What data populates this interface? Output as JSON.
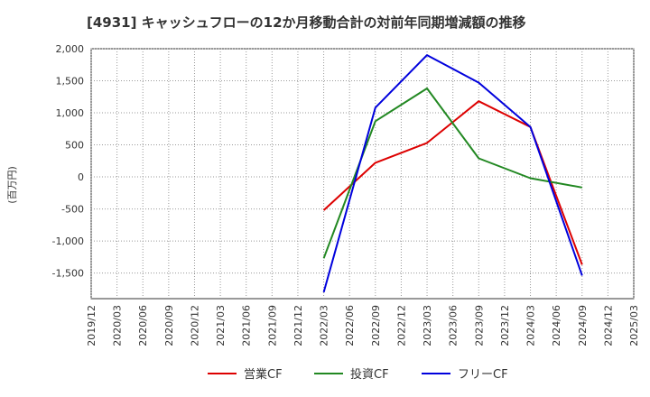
{
  "chart_data": {
    "type": "line",
    "title": "[4931]  キャッシュフローの12か月移動合計の対前年同期増減額の推移",
    "ylabel": "(百万円)",
    "xlabel": "",
    "ylim": [
      -1900,
      2000
    ],
    "yticks": [
      2000,
      1500,
      1000,
      500,
      0,
      -500,
      -1000,
      -1500
    ],
    "ytick_labels": [
      "2,000",
      "1,500",
      "1,000",
      "500",
      "0",
      "-500",
      "-1,000",
      "-1,500"
    ],
    "categories": [
      "2019/12",
      "2020/03",
      "2020/06",
      "2020/09",
      "2020/12",
      "2021/03",
      "2021/06",
      "2021/09",
      "2021/12",
      "2022/03",
      "2022/06",
      "2022/09",
      "2022/12",
      "2023/03",
      "2023/06",
      "2023/09",
      "2023/12",
      "2024/03",
      "2024/06",
      "2024/09",
      "2024/12",
      "2025/03"
    ],
    "grid": true,
    "series": [
      {
        "name": "営業CF",
        "color": "#dd0000",
        "values": [
          null,
          null,
          null,
          null,
          null,
          null,
          null,
          null,
          null,
          -520,
          null,
          220,
          null,
          530,
          null,
          1180,
          null,
          780,
          null,
          -1370,
          null,
          null
        ]
      },
      {
        "name": "投資CF",
        "color": "#228822",
        "values": [
          null,
          null,
          null,
          null,
          null,
          null,
          null,
          null,
          null,
          -1270,
          null,
          870,
          null,
          1380,
          null,
          290,
          null,
          -20,
          null,
          -165,
          null,
          null
        ]
      },
      {
        "name": "フリーCF",
        "color": "#0000dd",
        "values": [
          null,
          null,
          null,
          null,
          null,
          null,
          null,
          null,
          null,
          -1800,
          null,
          1080,
          null,
          1900,
          null,
          1470,
          null,
          780,
          null,
          -1540,
          null,
          null
        ]
      }
    ],
    "legend_position": "bottom"
  }
}
